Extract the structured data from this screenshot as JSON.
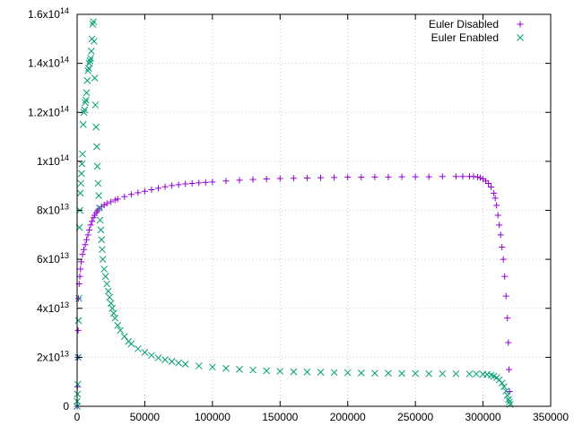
{
  "chart_data": {
    "type": "scatter",
    "title": "",
    "xlabel": "",
    "ylabel": "",
    "xlim": [
      0,
      350000
    ],
    "ylim": [
      0,
      160000000000000
    ],
    "grid": true,
    "legend_position": "top-right",
    "x_ticks": [
      "0",
      "50000",
      "100000",
      "150000",
      "200000",
      "250000",
      "300000",
      "350000"
    ],
    "y_ticks": [
      {
        "mant": "0",
        "exp": ""
      },
      {
        "mant": "2x10",
        "exp": "13"
      },
      {
        "mant": "4x10",
        "exp": "13"
      },
      {
        "mant": "6x10",
        "exp": "13"
      },
      {
        "mant": "8x10",
        "exp": "13"
      },
      {
        "mant": "1x10",
        "exp": "14"
      },
      {
        "mant": "1.2x10",
        "exp": "14"
      },
      {
        "mant": "1.4x10",
        "exp": "14"
      },
      {
        "mant": "1.6x10",
        "exp": "14"
      }
    ],
    "series": [
      {
        "name": "Euler Disabled",
        "marker": "plus",
        "color": "#9400d3",
        "points": [
          [
            0,
            0
          ],
          [
            200,
            8000000000000
          ],
          [
            500,
            20000000000000
          ],
          [
            700,
            31000000000000
          ],
          [
            1000,
            44000000000000
          ],
          [
            1500,
            50000000000000
          ],
          [
            2000,
            53000000000000
          ],
          [
            2500,
            56000000000000
          ],
          [
            3000,
            59000000000000
          ],
          [
            4000,
            62000000000000
          ],
          [
            5000,
            64000000000000
          ],
          [
            6000,
            66000000000000
          ],
          [
            7000,
            68000000000000
          ],
          [
            8000,
            70000000000000
          ],
          [
            9000,
            72000000000000
          ],
          [
            10000,
            74000000000000
          ],
          [
            11000,
            75500000000000
          ],
          [
            12000,
            77000000000000
          ],
          [
            13000,
            78000000000000
          ],
          [
            14000,
            79000000000000
          ],
          [
            15000,
            79800000000000
          ],
          [
            16000,
            80500000000000
          ],
          [
            18000,
            81500000000000
          ],
          [
            20000,
            82200000000000
          ],
          [
            22000,
            82800000000000
          ],
          [
            25000,
            83500000000000
          ],
          [
            28000,
            84200000000000
          ],
          [
            30000,
            84600000000000
          ],
          [
            35000,
            85600000000000
          ],
          [
            40000,
            86500000000000
          ],
          [
            45000,
            87200000000000
          ],
          [
            50000,
            87800000000000
          ],
          [
            55000,
            88400000000000
          ],
          [
            60000,
            89000000000000
          ],
          [
            65000,
            89600000000000
          ],
          [
            70000,
            90100000000000
          ],
          [
            75000,
            90500000000000
          ],
          [
            80000,
            90800000000000
          ],
          [
            85000,
            91000000000000
          ],
          [
            90000,
            91200000000000
          ],
          [
            95000,
            91400000000000
          ],
          [
            100000,
            91600000000000
          ],
          [
            110000,
            92000000000000
          ],
          [
            120000,
            92300000000000
          ],
          [
            130000,
            92600000000000
          ],
          [
            140000,
            92800000000000
          ],
          [
            150000,
            93000000000000
          ],
          [
            160000,
            93100000000000
          ],
          [
            170000,
            93200000000000
          ],
          [
            180000,
            93300000000000
          ],
          [
            190000,
            93400000000000
          ],
          [
            200000,
            93500000000000
          ],
          [
            210000,
            93500000000000
          ],
          [
            220000,
            93600000000000
          ],
          [
            230000,
            93600000000000
          ],
          [
            240000,
            93700000000000
          ],
          [
            250000,
            93700000000000
          ],
          [
            260000,
            93700000000000
          ],
          [
            270000,
            93800000000000
          ],
          [
            280000,
            93800000000000
          ],
          [
            285000,
            93800000000000
          ],
          [
            290000,
            93800000000000
          ],
          [
            293000,
            93800000000000
          ],
          [
            296000,
            93600000000000
          ],
          [
            298000,
            93300000000000
          ],
          [
            300000,
            92800000000000
          ],
          [
            302000,
            92000000000000
          ],
          [
            304000,
            91000000000000
          ],
          [
            306000,
            89500000000000
          ],
          [
            308000,
            87000000000000
          ],
          [
            309000,
            85000000000000
          ],
          [
            310000,
            82000000000000
          ],
          [
            311000,
            78000000000000
          ],
          [
            312000,
            74000000000000
          ],
          [
            313000,
            70000000000000
          ],
          [
            314000,
            65000000000000
          ],
          [
            315000,
            60000000000000
          ],
          [
            316000,
            53000000000000
          ],
          [
            317000,
            45000000000000
          ],
          [
            318000,
            36000000000000
          ],
          [
            318700,
            26000000000000
          ],
          [
            319200,
            15000000000000
          ],
          [
            319600,
            6000000000000
          ]
        ]
      },
      {
        "name": "Euler Enabled",
        "marker": "cross",
        "color": "#009e73",
        "points": [
          [
            0,
            0
          ],
          [
            0,
            2000000000000
          ],
          [
            300,
            5000000000000
          ],
          [
            500,
            9000000000000
          ],
          [
            700,
            20000000000000
          ],
          [
            1000,
            35000000000000
          ],
          [
            1300,
            44000000000000
          ],
          [
            1700,
            73000000000000
          ],
          [
            2000,
            80000000000000
          ],
          [
            2400,
            87000000000000
          ],
          [
            2800,
            91000000000000
          ],
          [
            3200,
            95000000000000
          ],
          [
            3600,
            99000000000000
          ],
          [
            4000,
            103000000000000
          ],
          [
            4500,
            115000000000000
          ],
          [
            5000,
            120000000000000
          ],
          [
            5500,
            121000000000000
          ],
          [
            6000,
            124000000000000
          ],
          [
            6500,
            125000000000000
          ],
          [
            7000,
            128000000000000
          ],
          [
            7500,
            133000000000000
          ],
          [
            8000,
            137000000000000
          ],
          [
            8500,
            138000000000000
          ],
          [
            9000,
            140000000000000
          ],
          [
            9500,
            141000000000000
          ],
          [
            10000,
            142000000000000
          ],
          [
            10500,
            145000000000000
          ],
          [
            11000,
            150000000000000
          ],
          [
            11500,
            156000000000000
          ],
          [
            12000,
            157000000000000
          ],
          [
            12500,
            149000000000000
          ],
          [
            13000,
            134000000000000
          ],
          [
            13500,
            123000000000000
          ],
          [
            14000,
            114000000000000
          ],
          [
            14500,
            106000000000000
          ],
          [
            15000,
            98000000000000
          ],
          [
            15500,
            91000000000000
          ],
          [
            16000,
            86000000000000
          ],
          [
            16500,
            81000000000000
          ],
          [
            17000,
            76000000000000
          ],
          [
            17500,
            72000000000000
          ],
          [
            18000,
            68000000000000
          ],
          [
            18500,
            64000000000000
          ],
          [
            19000,
            60000000000000
          ],
          [
            20000,
            56000000000000
          ],
          [
            21000,
            53000000000000
          ],
          [
            22000,
            50000000000000
          ],
          [
            23000,
            47000000000000
          ],
          [
            24000,
            44500000000000
          ],
          [
            25000,
            42000000000000
          ],
          [
            26000,
            40000000000000
          ],
          [
            27000,
            38000000000000
          ],
          [
            28000,
            36000000000000
          ],
          [
            30000,
            33000000000000
          ],
          [
            32000,
            31000000000000
          ],
          [
            35000,
            28500000000000
          ],
          [
            38000,
            26500000000000
          ],
          [
            40000,
            25500000000000
          ],
          [
            45000,
            23500000000000
          ],
          [
            50000,
            22000000000000
          ],
          [
            55000,
            20800000000000
          ],
          [
            60000,
            19800000000000
          ],
          [
            65000,
            19000000000000
          ],
          [
            70000,
            18300000000000
          ],
          [
            75000,
            17700000000000
          ],
          [
            80000,
            17200000000000
          ],
          [
            90000,
            16500000000000
          ],
          [
            100000,
            16000000000000
          ],
          [
            110000,
            15500000000000
          ],
          [
            120000,
            15100000000000
          ],
          [
            130000,
            14800000000000
          ],
          [
            140000,
            14500000000000
          ],
          [
            150000,
            14300000000000
          ],
          [
            160000,
            14100000000000
          ],
          [
            170000,
            14000000000000
          ],
          [
            180000,
            13900000000000
          ],
          [
            190000,
            13800000000000
          ],
          [
            200000,
            13700000000000
          ],
          [
            210000,
            13600000000000
          ],
          [
            220000,
            13500000000000
          ],
          [
            230000,
            13500000000000
          ],
          [
            240000,
            13400000000000
          ],
          [
            250000,
            13400000000000
          ],
          [
            260000,
            13300000000000
          ],
          [
            270000,
            13300000000000
          ],
          [
            280000,
            13300000000000
          ],
          [
            290000,
            13200000000000
          ],
          [
            295000,
            13200000000000
          ],
          [
            300000,
            13100000000000
          ],
          [
            303000,
            13000000000000
          ],
          [
            306000,
            12700000000000
          ],
          [
            308000,
            12300000000000
          ],
          [
            310000,
            11700000000000
          ],
          [
            312000,
            10800000000000
          ],
          [
            314000,
            9500000000000
          ],
          [
            315500,
            8000000000000
          ],
          [
            317000,
            6200000000000
          ],
          [
            318000,
            4500000000000
          ],
          [
            319000,
            2800000000000
          ],
          [
            319500,
            1800000000000
          ],
          [
            320000,
            800000000000
          ]
        ]
      }
    ]
  }
}
